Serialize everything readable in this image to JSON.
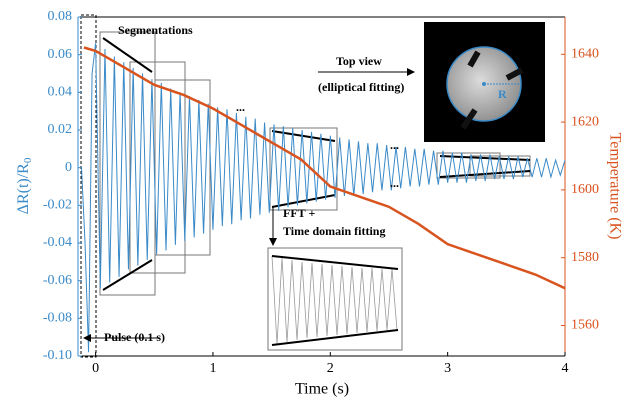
{
  "chart_data": {
    "type": "line",
    "xlabel": "Time (s)",
    "ylabel": {
      "text": "ΔR(t)/R",
      "sub": "0"
    },
    "y2label": "Temperature (K)",
    "xlim": [
      -0.15,
      4
    ],
    "xticks": [
      0,
      1,
      2,
      3,
      4
    ],
    "ylim": [
      -0.1,
      0.08
    ],
    "yticks": [
      {
        "value": -0.1,
        "label": "-0.10"
      },
      -0.08,
      -0.06,
      -0.04,
      -0.02,
      0,
      0.02,
      0.04,
      0.06,
      0.08
    ],
    "y2lim": [
      1551,
      1651
    ],
    "y2ticks": [
      1560,
      1580,
      1600,
      1620,
      1640
    ],
    "series": [
      {
        "color": "#3a8ac8",
        "x": [
          -0.12,
          -0.09,
          -0.06,
          -0.03,
          0,
          0.04,
          0.08,
          0.12,
          0.16,
          0.2,
          0.24,
          0.28,
          0.32,
          0.36,
          0.4,
          0.44,
          0.48,
          0.52,
          0.56,
          0.6,
          0.64,
          0.68,
          0.72,
          0.76,
          0.8,
          0.84,
          0.88,
          0.92,
          0.96,
          1,
          1.04,
          1.08,
          1.12,
          1.16,
          1.2,
          1.24,
          1.28,
          1.32,
          1.36,
          1.4,
          1.44,
          1.48,
          1.52,
          1.56,
          1.6,
          1.64,
          1.68,
          1.72,
          1.76,
          1.8,
          1.84,
          1.88,
          1.92,
          1.96,
          2,
          2.04,
          2.08,
          2.12,
          2.16,
          2.2,
          2.24,
          2.28,
          2.32,
          2.36,
          2.4,
          2.44,
          2.48,
          2.52,
          2.56,
          2.6,
          2.64,
          2.68,
          2.72,
          2.76,
          2.8,
          2.84,
          2.88,
          2.92,
          2.96,
          3,
          3.04,
          3.08,
          3.12,
          3.16,
          3.2,
          3.24,
          3.28,
          3.32,
          3.36,
          3.4,
          3.44,
          3.48,
          3.52,
          3.56,
          3.6,
          3.64,
          3.68,
          3.72,
          3.76,
          3.8,
          3.84,
          3.88,
          3.92,
          3.96,
          4
        ],
        "values": [
          0,
          -0.04,
          -0.098,
          0.05,
          0.066,
          -0.064,
          0.063,
          -0.061,
          0.059,
          -0.058,
          0.056,
          -0.054,
          0.053,
          -0.052,
          0.05,
          -0.049,
          0.047,
          -0.046,
          0.045,
          -0.044,
          0.042,
          -0.041,
          0.04,
          -0.039,
          0.038,
          -0.037,
          0.036,
          -0.035,
          0.034,
          -0.033,
          0.032,
          -0.031,
          0.031,
          -0.03,
          0.029,
          -0.028,
          0.027,
          -0.027,
          0.026,
          -0.025,
          0.024,
          -0.024,
          0.023,
          -0.023,
          0.022,
          -0.021,
          0.021,
          -0.02,
          0.02,
          -0.019,
          0.019,
          -0.018,
          0.018,
          -0.017,
          0.017,
          -0.016,
          0.016,
          -0.015,
          0.015,
          -0.015,
          0.014,
          -0.014,
          0.013,
          -0.013,
          0.013,
          -0.012,
          0.012,
          -0.012,
          0.011,
          -0.011,
          0.011,
          -0.01,
          0.01,
          -0.01,
          0.01,
          -0.009,
          0.009,
          -0.009,
          0.009,
          -0.008,
          0.008,
          -0.008,
          0.008,
          -0.008,
          0.007,
          -0.007,
          0.007,
          -0.007,
          0.007,
          -0.006,
          0.006,
          -0.006,
          0.006,
          -0.006,
          0.006,
          -0.005,
          0.005,
          -0.005,
          0.005,
          -0.005,
          0.005,
          -0.005,
          0.004,
          -0.004,
          0.004
        ]
      },
      {
        "color": "#d9531e",
        "axis": "y2",
        "x": [
          -0.1,
          0,
          0.25,
          0.5,
          0.75,
          1,
          1.25,
          1.5,
          1.75,
          2,
          2.25,
          2.5,
          2.75,
          3,
          3.25,
          3.5,
          3.75,
          4
        ],
        "values": [
          1642,
          1641,
          1636,
          1631,
          1628,
          1624,
          1619,
          1614,
          1609,
          1601,
          1598,
          1595,
          1590,
          1584,
          1581,
          1578,
          1575,
          1571
        ]
      }
    ],
    "annotations": [
      "Segmentations",
      "...",
      "...",
      "...",
      "Top view",
      "(elliptical fitting)",
      "R",
      "FFT +",
      "Time domain fitting",
      "Pulse (0.1 s)"
    ]
  }
}
